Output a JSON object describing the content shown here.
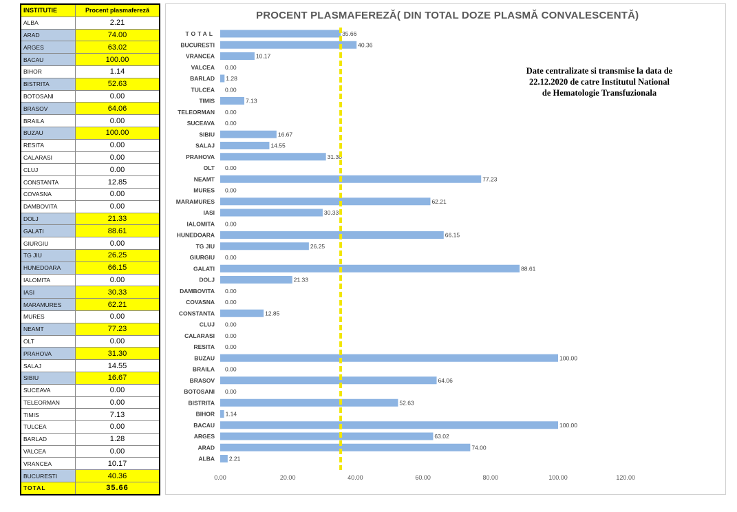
{
  "table": {
    "header_institutie": "INSTITUTIE",
    "header_procent": "Procent plasmafereză",
    "rows": [
      {
        "name": "ALBA",
        "value": "2.21",
        "highlight": false
      },
      {
        "name": "ARAD",
        "value": "74.00",
        "highlight": true
      },
      {
        "name": "ARGES",
        "value": "63.02",
        "highlight": true
      },
      {
        "name": "BACAU",
        "value": "100.00",
        "highlight": true
      },
      {
        "name": "BIHOR",
        "value": "1.14",
        "highlight": false
      },
      {
        "name": "BISTRITA",
        "value": "52.63",
        "highlight": true
      },
      {
        "name": "BOTOSANI",
        "value": "0.00",
        "highlight": false
      },
      {
        "name": "BRASOV",
        "value": "64.06",
        "highlight": true
      },
      {
        "name": "BRAILA",
        "value": "0.00",
        "highlight": false
      },
      {
        "name": "BUZAU",
        "value": "100.00",
        "highlight": true
      },
      {
        "name": "RESITA",
        "value": "0.00",
        "highlight": false
      },
      {
        "name": "CALARASI",
        "value": "0.00",
        "highlight": false
      },
      {
        "name": "CLUJ",
        "value": "0.00",
        "highlight": false
      },
      {
        "name": "CONSTANTA",
        "value": "12.85",
        "highlight": false
      },
      {
        "name": "COVASNA",
        "value": "0.00",
        "highlight": false
      },
      {
        "name": "DAMBOVITA",
        "value": "0.00",
        "highlight": false
      },
      {
        "name": "DOLJ",
        "value": "21.33",
        "highlight": true
      },
      {
        "name": "GALATI",
        "value": "88.61",
        "highlight": true
      },
      {
        "name": "GIURGIU",
        "value": "0.00",
        "highlight": false
      },
      {
        "name": "TG JIU",
        "value": "26.25",
        "highlight": true
      },
      {
        "name": "HUNEDOARA",
        "value": "66.15",
        "highlight": true
      },
      {
        "name": "IALOMITA",
        "value": "0.00",
        "highlight": false
      },
      {
        "name": "IASI",
        "value": "30.33",
        "highlight": true
      },
      {
        "name": "MARAMURES",
        "value": "62.21",
        "highlight": true
      },
      {
        "name": "MURES",
        "value": "0.00",
        "highlight": false
      },
      {
        "name": "NEAMT",
        "value": "77.23",
        "highlight": true
      },
      {
        "name": "OLT",
        "value": "0.00",
        "highlight": false
      },
      {
        "name": "PRAHOVA",
        "value": "31.30",
        "highlight": true
      },
      {
        "name": "SALAJ",
        "value": "14.55",
        "highlight": false
      },
      {
        "name": "SIBIU",
        "value": "16.67",
        "highlight": true
      },
      {
        "name": "SUCEAVA",
        "value": "0.00",
        "highlight": false
      },
      {
        "name": "TELEORMAN",
        "value": "0.00",
        "highlight": false
      },
      {
        "name": "TIMIS",
        "value": "7.13",
        "highlight": false
      },
      {
        "name": "TULCEA",
        "value": "0.00",
        "highlight": false
      },
      {
        "name": "BARLAD",
        "value": "1.28",
        "highlight": false
      },
      {
        "name": "VALCEA",
        "value": "0.00",
        "highlight": false
      },
      {
        "name": "VRANCEA",
        "value": "10.17",
        "highlight": false
      },
      {
        "name": "BUCURESTI",
        "value": "40.36",
        "highlight": true
      }
    ],
    "total_label": "TOTAL",
    "total_value": "35.66"
  },
  "note": {
    "line1": "Date centralizate si transmise  la data de",
    "line2": "22.12.2020 de catre Institutul  National",
    "line3": "de Hematologie Transfuzionala"
  },
  "colors": {
    "bar": "#8db4e2",
    "highlight_yellow": "#ffff00",
    "highlight_blue": "#b8cce4",
    "reference_line": "#f2e600"
  },
  "chart_data": {
    "type": "bar",
    "orientation": "horizontal",
    "title": "PROCENT PLASMAFEREZĂ( DIN TOTAL DOZE PLASMĂ CONVALESCENTĂ)",
    "categories": [
      "TOTAL",
      "BUCURESTI",
      "VRANCEA",
      "VALCEA",
      "BARLAD",
      "TULCEA",
      "TIMIS",
      "TELEORMAN",
      "SUCEAVA",
      "SIBIU",
      "SALAJ",
      "PRAHOVA",
      "OLT",
      "NEAMT",
      "MURES",
      "MARAMURES",
      "IASI",
      "IALOMITA",
      "HUNEDOARA",
      "TG JIU",
      "GIURGIU",
      "GALATI",
      "DOLJ",
      "DAMBOVITA",
      "COVASNA",
      "CONSTANTA",
      "CLUJ",
      "CALARASI",
      "RESITA",
      "BUZAU",
      "BRAILA",
      "BRASOV",
      "BOTOSANI",
      "BISTRITA",
      "BIHOR",
      "BACAU",
      "ARGES",
      "ARAD",
      "ALBA"
    ],
    "values": [
      35.66,
      40.36,
      10.17,
      0.0,
      1.28,
      0.0,
      7.13,
      0.0,
      0.0,
      16.67,
      14.55,
      31.3,
      0.0,
      77.23,
      0.0,
      62.21,
      30.33,
      0.0,
      66.15,
      26.25,
      0.0,
      88.61,
      21.33,
      0.0,
      0.0,
      12.85,
      0.0,
      0.0,
      0.0,
      100.0,
      0.0,
      64.06,
      0.0,
      52.63,
      1.14,
      100.0,
      63.02,
      74.0,
      2.21
    ],
    "data_labels": [
      "35.66",
      "40.36",
      "10.17",
      "0.00",
      "1.28",
      "0.00",
      "7.13",
      "0.00",
      "0.00",
      "16.67",
      "14.55",
      "31.30",
      "0.00",
      "77.23",
      "0.00",
      "62.21",
      "30.33",
      "0.00",
      "66.15",
      "26.25",
      "0.00",
      "88.61",
      "21.33",
      "0.00",
      "0.00",
      "12.85",
      "0.00",
      "0.00",
      "0.00",
      "100.00",
      "0.00",
      "64.06",
      "0.00",
      "52.63",
      "1.14",
      "100.00",
      "63.02",
      "74.00",
      "2.21"
    ],
    "reference_line": 35.66,
    "xlim": [
      0,
      120
    ],
    "xticks": [
      0,
      20,
      40,
      60,
      80,
      100,
      120
    ],
    "xtick_labels": [
      "0.00",
      "20.00",
      "40.00",
      "60.00",
      "80.00",
      "100.00",
      "120.00"
    ],
    "grid": false,
    "legend": "none"
  }
}
